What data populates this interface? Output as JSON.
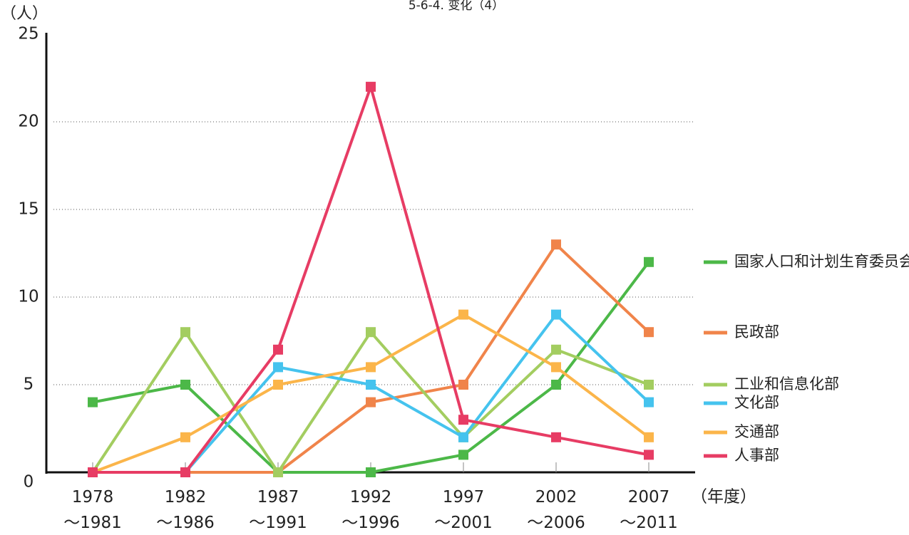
{
  "chart_data": {
    "type": "line",
    "title": "5-6-4. 变化（4）",
    "y_label": "（人）",
    "x_label": "（年度）",
    "categories": [
      "1978\n～1981",
      "1982\n～1986",
      "1987\n～1991",
      "1992\n～1996",
      "1997\n～2001",
      "2002\n～2006",
      "2007\n～2011"
    ],
    "ylim": [
      0,
      25
    ],
    "yticks": [
      0,
      5,
      10,
      15,
      20,
      25
    ],
    "grid": true,
    "legend": "right",
    "series": [
      {
        "name": "国家人口和计划生育委员会",
        "color": "#4cb848",
        "values": [
          4,
          5,
          0,
          0,
          1,
          5,
          12
        ]
      },
      {
        "name": "民政部",
        "color": "#f0844a",
        "values": [
          0,
          0,
          0,
          4,
          5,
          13,
          8
        ]
      },
      {
        "name": "工业和信息化部",
        "color": "#a3cd60",
        "values": [
          0,
          8,
          0,
          8,
          2,
          7,
          5
        ]
      },
      {
        "name": "文化部",
        "color": "#45c3ee",
        "values": [
          0,
          0,
          6,
          5,
          2,
          9,
          4
        ]
      },
      {
        "name": "交通部",
        "color": "#fbb54a",
        "values": [
          0,
          2,
          5,
          6,
          9,
          6,
          2
        ]
      },
      {
        "name": "人事部",
        "color": "#e73c64",
        "values": [
          0,
          0,
          7,
          22,
          3,
          2,
          1
        ]
      }
    ]
  }
}
